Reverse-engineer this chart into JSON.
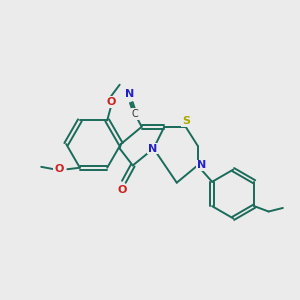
{
  "bg_color": "#ebebeb",
  "bond_color": "#1a6b5a",
  "atom_colors": {
    "N": "#2222cc",
    "O": "#cc2222",
    "S": "#aaaa00",
    "C": "#333333"
  },
  "bond_width": 1.4,
  "font_size": 8.5
}
